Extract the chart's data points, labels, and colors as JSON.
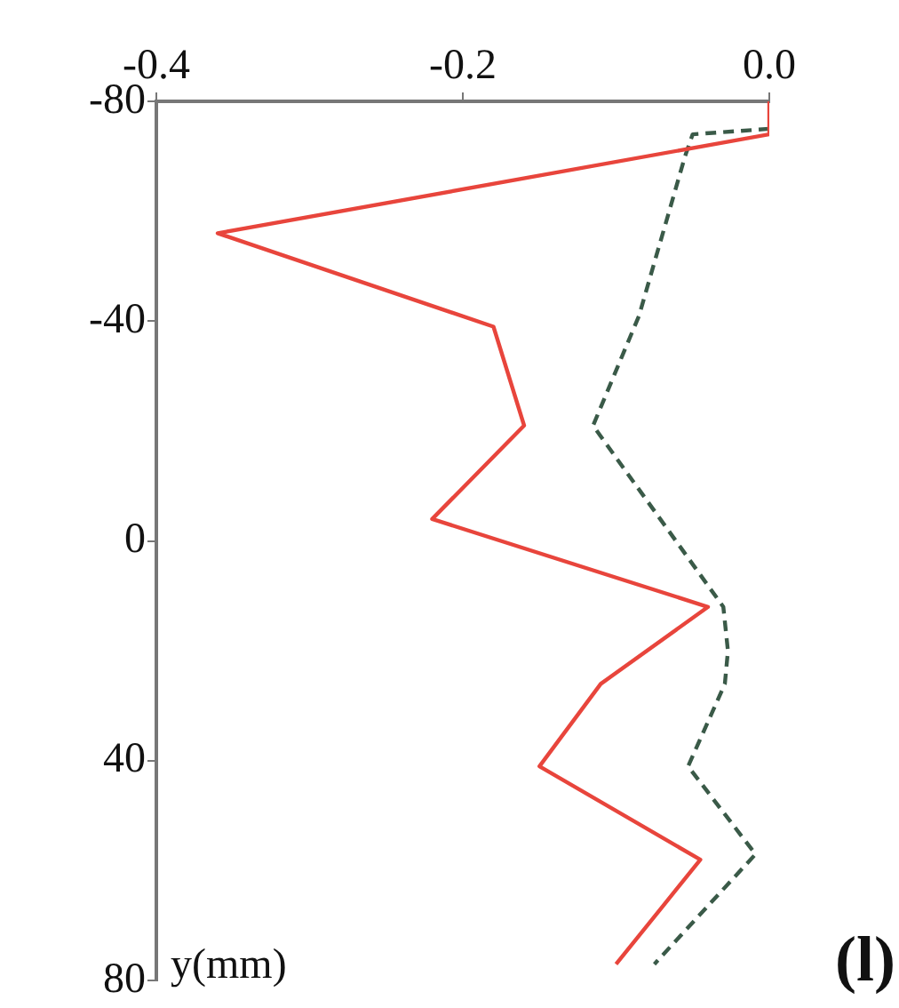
{
  "chart_data": {
    "type": "line",
    "ylabel": "y(mm)",
    "annotations": [
      "(l)"
    ],
    "xlim": [
      -0.4,
      0
    ],
    "xticks": [
      -0.4,
      -0.2,
      {
        "value": 0,
        "label": "0.0"
      }
    ],
    "ylim": [
      80,
      -80
    ],
    "yticks": [
      -80,
      -40,
      0,
      40,
      80
    ],
    "grid": false,
    "legend": false,
    "marker": "none",
    "series": [
      {
        "color": "#e8453c",
        "line_style": "solid",
        "x": [
          0,
          0,
          -0.36,
          -0.18,
          -0.16,
          -0.22,
          -0.04,
          -0.11,
          -0.15,
          -0.045,
          -0.1
        ],
        "values": [
          -80,
          -74,
          -56,
          -39,
          -21,
          -4,
          12,
          26,
          41,
          58,
          77
        ]
      },
      {
        "color": "#3a5a48",
        "line_style": "dashed",
        "x": [
          0,
          -0.05,
          -0.055,
          -0.085,
          -0.115,
          -0.03,
          -0.027,
          -0.029,
          -0.053,
          -0.009,
          -0.075
        ],
        "values": [
          -75,
          -74,
          -70,
          -41,
          -21,
          12,
          20,
          26,
          41,
          57,
          77
        ]
      }
    ]
  }
}
